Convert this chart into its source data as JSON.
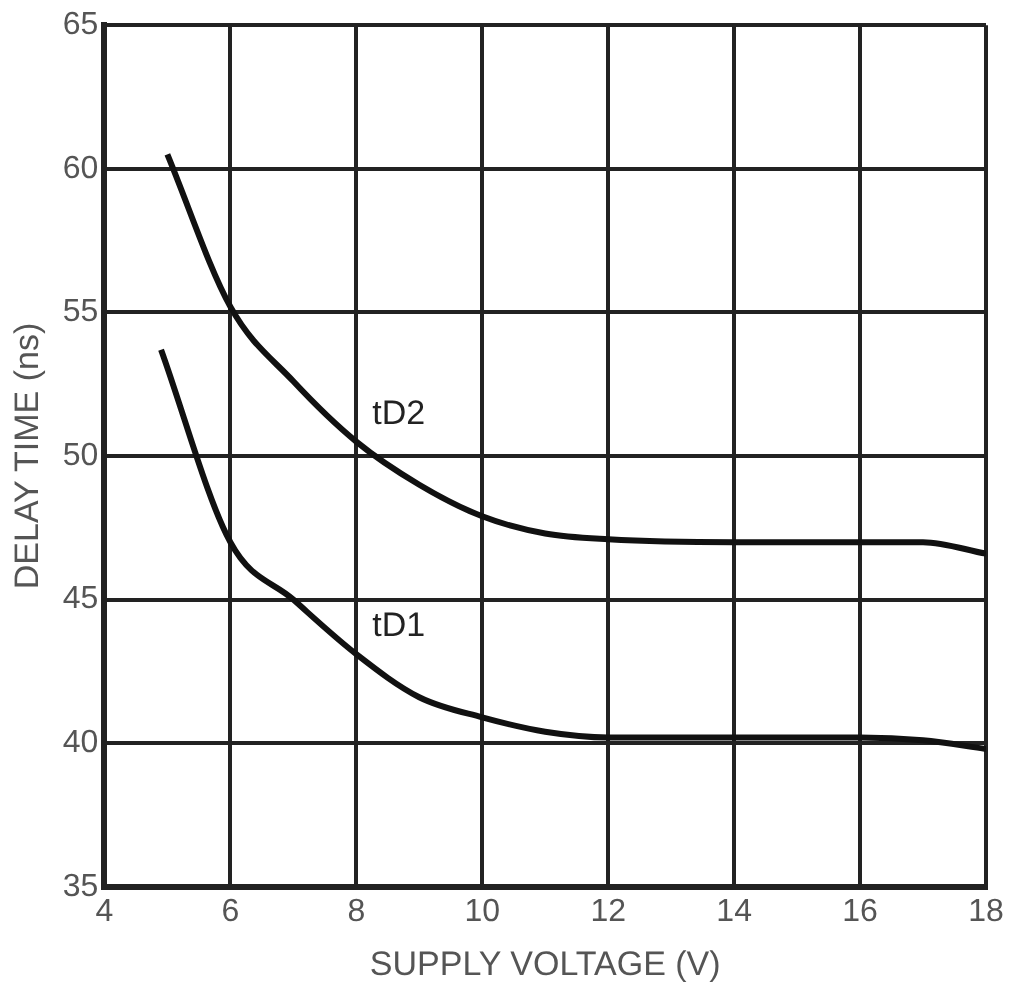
{
  "chart_data": {
    "type": "line",
    "xlabel": "SUPPLY VOLTAGE (V)",
    "ylabel": "DELAY TIME (ns)",
    "xlim": [
      4,
      18
    ],
    "xticks": [
      4,
      6,
      8,
      10,
      12,
      14,
      16,
      18
    ],
    "ylim": [
      35,
      65
    ],
    "yticks": [
      35,
      40,
      45,
      50,
      55,
      60,
      65
    ],
    "grid": true,
    "legend": false,
    "marker": "none",
    "line_style": "solid",
    "series": [
      {
        "name": "tD2",
        "color": "#111111",
        "x": [
          5,
          6,
          7,
          8,
          9,
          10,
          11,
          12,
          14,
          16,
          17,
          18
        ],
        "values": [
          60.5,
          55.2,
          52.6,
          50.5,
          49,
          47.9,
          47.3,
          47.1,
          47,
          47,
          47,
          46.6
        ]
      },
      {
        "name": "tD1",
        "color": "#111111",
        "x": [
          4.9,
          6,
          7,
          8,
          9,
          10,
          11,
          12,
          14,
          16,
          17,
          18
        ],
        "values": [
          53.7,
          47,
          45,
          43.1,
          41.6,
          40.9,
          40.4,
          40.2,
          40.2,
          40.2,
          40.1,
          39.8
        ]
      }
    ]
  }
}
